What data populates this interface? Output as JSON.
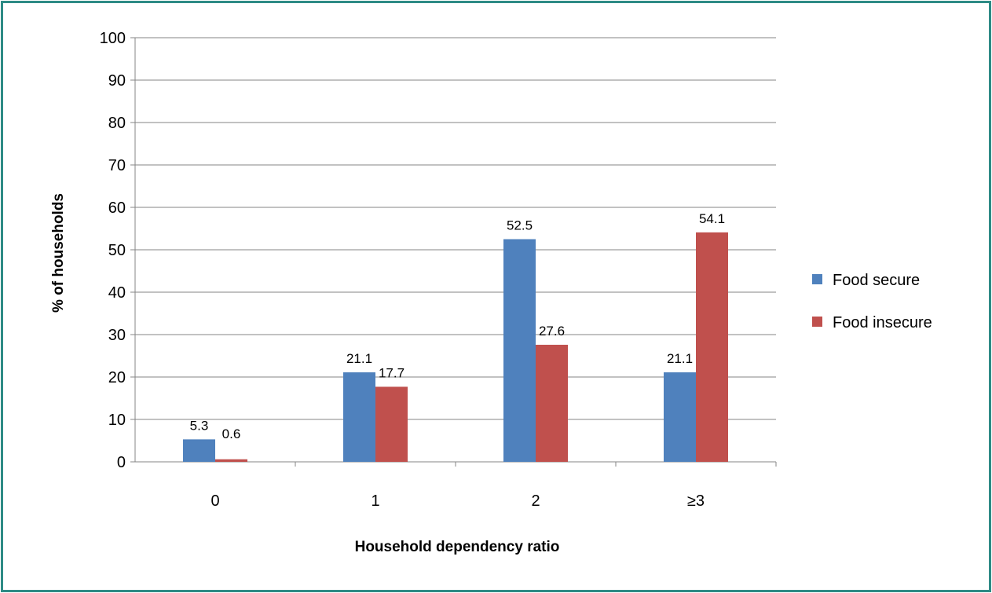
{
  "chart_data": {
    "type": "bar",
    "categories": [
      "0",
      "1",
      "2",
      "≥3"
    ],
    "series": [
      {
        "name": "Food secure",
        "values": [
          5.3,
          21.1,
          52.5,
          21.1
        ],
        "labels": [
          "5.3",
          "21.1",
          "52.5",
          "21.1"
        ],
        "color": "#4f81bd"
      },
      {
        "name": "Food insecure",
        "values": [
          0.6,
          17.7,
          27.6,
          54.1
        ],
        "labels": [
          "0.6",
          "17.7",
          "27.6",
          "54.1"
        ],
        "color": "#c0504d"
      }
    ],
    "xlabel": "Household  dependency ratio",
    "ylabel": "% of households",
    "ylim": [
      0,
      100
    ],
    "yticks": [
      0,
      10,
      20,
      30,
      40,
      50,
      60,
      70,
      80,
      90,
      100
    ],
    "ytick_labels": [
      "0",
      "10",
      "20",
      "30",
      "40",
      "50",
      "60",
      "70",
      "80",
      "90",
      "100"
    ],
    "grid": true,
    "legend_position": "right",
    "frame_color": "#2e8b86",
    "gridline_color": "#868686"
  }
}
